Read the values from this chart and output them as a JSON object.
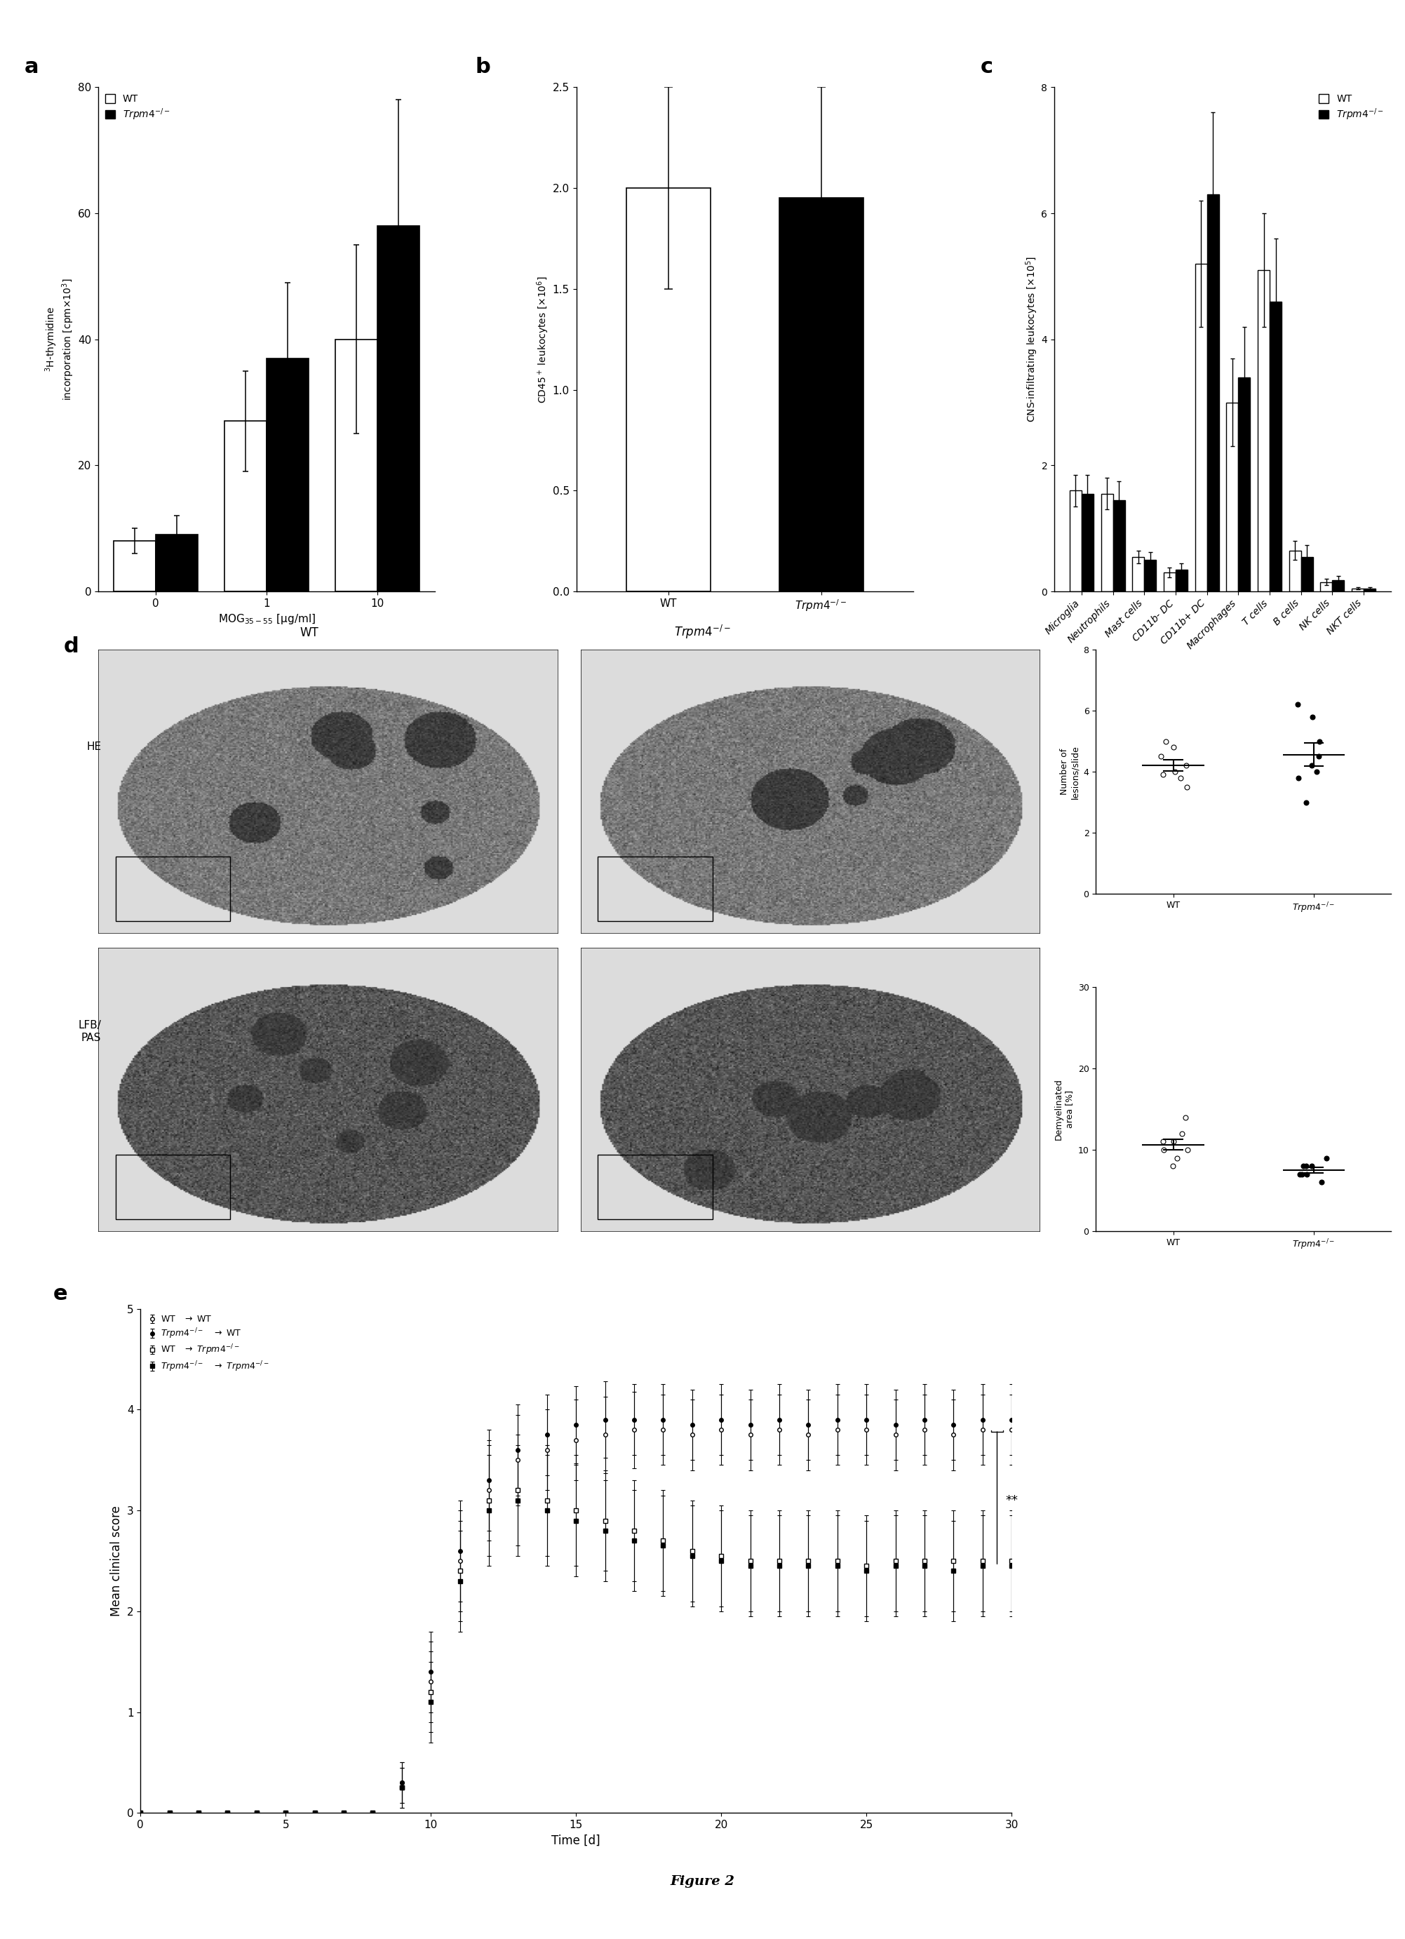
{
  "panel_a": {
    "wt_values": [
      8,
      27,
      40
    ],
    "wt_errors": [
      2,
      8,
      15
    ],
    "ko_values": [
      9,
      37,
      58
    ],
    "ko_errors": [
      3,
      12,
      20
    ],
    "x_labels": [
      "0",
      "1",
      "10"
    ],
    "xlabel": "MOG$_{35-55}$ [μg/ml]",
    "ylabel": "$^3$H-thymidine\nincorporation [cpm×10$^3$]",
    "ylim": [
      0,
      80
    ],
    "yticks": [
      0,
      20,
      40,
      60,
      80
    ]
  },
  "panel_b": {
    "wt_value": 2.0,
    "wt_error": 0.5,
    "ko_value": 1.95,
    "ko_error": 0.55,
    "ylabel": "CD45$^+$ leukocytes [×10$^6$]",
    "ylim": [
      0,
      2.5
    ],
    "yticks": [
      0,
      0.5,
      1.0,
      1.5,
      2.0,
      2.5
    ]
  },
  "panel_c": {
    "categories": [
      "Microglia",
      "Neutrophils",
      "Mast cells",
      "CD11b- DC",
      "CD11b+ DC",
      "Macrophages",
      "T cells",
      "B cells",
      "NK cells",
      "NKT cells"
    ],
    "wt_values": [
      1.6,
      1.55,
      0.55,
      0.3,
      5.2,
      3.0,
      5.1,
      0.65,
      0.15,
      0.05
    ],
    "wt_errors": [
      0.25,
      0.25,
      0.1,
      0.08,
      1.0,
      0.7,
      0.9,
      0.15,
      0.05,
      0.02
    ],
    "ko_values": [
      1.55,
      1.45,
      0.5,
      0.35,
      6.3,
      3.4,
      4.6,
      0.55,
      0.18,
      0.05
    ],
    "ko_errors": [
      0.3,
      0.3,
      0.12,
      0.1,
      1.3,
      0.8,
      1.0,
      0.18,
      0.06,
      0.02
    ],
    "ylabel": "CNS-infiltrating leukocytes [×10$^5$]",
    "ylim": [
      0,
      8
    ],
    "yticks": [
      0,
      2,
      4,
      6,
      8
    ]
  },
  "scatter_lesions": {
    "ylabel": "Number of\nlesions/slide",
    "ylim": [
      0,
      8
    ],
    "yticks": [
      0,
      2,
      4,
      6,
      8
    ],
    "wt_points": [
      4.0,
      3.8,
      5.0,
      4.8,
      4.2,
      3.5,
      4.5,
      3.9
    ],
    "ko_points": [
      3.8,
      4.2,
      6.2,
      5.8,
      4.5,
      3.0,
      5.0,
      4.0
    ]
  },
  "scatter_demyelin": {
    "ylabel": "Demyelinated\narea [%]",
    "ylim": [
      0,
      30
    ],
    "yticks": [
      0,
      10,
      20,
      30
    ],
    "wt_points": [
      10,
      14,
      11,
      10,
      8,
      9,
      12,
      11
    ],
    "ko_points": [
      7,
      8,
      7,
      6,
      8,
      7,
      9,
      8
    ]
  },
  "panel_e": {
    "days": [
      0,
      1,
      2,
      3,
      4,
      5,
      6,
      7,
      8,
      9,
      10,
      11,
      12,
      13,
      14,
      15,
      16,
      17,
      18,
      19,
      20,
      21,
      22,
      23,
      24,
      25,
      26,
      27,
      28,
      29,
      30
    ],
    "wt_wt_values": [
      0,
      0,
      0,
      0,
      0,
      0,
      0,
      0,
      0,
      0.3,
      1.3,
      2.5,
      3.2,
      3.5,
      3.6,
      3.7,
      3.75,
      3.8,
      3.8,
      3.75,
      3.8,
      3.75,
      3.8,
      3.75,
      3.8,
      3.8,
      3.75,
      3.8,
      3.75,
      3.8,
      3.8
    ],
    "wt_wt_errors": [
      0,
      0,
      0,
      0,
      0,
      0,
      0,
      0,
      0,
      0.2,
      0.4,
      0.5,
      0.5,
      0.45,
      0.4,
      0.4,
      0.38,
      0.38,
      0.35,
      0.35,
      0.35,
      0.35,
      0.35,
      0.35,
      0.35,
      0.35,
      0.35,
      0.35,
      0.35,
      0.35,
      0.35
    ],
    "ko_wt_values": [
      0,
      0,
      0,
      0,
      0,
      0,
      0,
      0,
      0,
      0.3,
      1.4,
      2.6,
      3.3,
      3.6,
      3.75,
      3.85,
      3.9,
      3.9,
      3.9,
      3.85,
      3.9,
      3.85,
      3.9,
      3.85,
      3.9,
      3.9,
      3.85,
      3.9,
      3.85,
      3.9,
      3.9
    ],
    "ko_wt_errors": [
      0,
      0,
      0,
      0,
      0,
      0,
      0,
      0,
      0,
      0.2,
      0.4,
      0.5,
      0.5,
      0.45,
      0.4,
      0.38,
      0.38,
      0.35,
      0.35,
      0.35,
      0.35,
      0.35,
      0.35,
      0.35,
      0.35,
      0.35,
      0.35,
      0.35,
      0.35,
      0.35,
      0.35
    ],
    "wt_ko_values": [
      0,
      0,
      0,
      0,
      0,
      0,
      0,
      0,
      0,
      0.25,
      1.2,
      2.4,
      3.1,
      3.2,
      3.1,
      3.0,
      2.9,
      2.8,
      2.7,
      2.6,
      2.55,
      2.5,
      2.5,
      2.5,
      2.5,
      2.45,
      2.5,
      2.5,
      2.5,
      2.5,
      2.5
    ],
    "wt_ko_errors": [
      0,
      0,
      0,
      0,
      0,
      0,
      0,
      0,
      0,
      0.2,
      0.4,
      0.5,
      0.55,
      0.55,
      0.55,
      0.55,
      0.5,
      0.5,
      0.5,
      0.5,
      0.5,
      0.5,
      0.5,
      0.5,
      0.5,
      0.5,
      0.5,
      0.5,
      0.5,
      0.5,
      0.5
    ],
    "ko_ko_values": [
      0,
      0,
      0,
      0,
      0,
      0,
      0,
      0,
      0,
      0.25,
      1.1,
      2.3,
      3.0,
      3.1,
      3.0,
      2.9,
      2.8,
      2.7,
      2.65,
      2.55,
      2.5,
      2.45,
      2.45,
      2.45,
      2.45,
      2.4,
      2.45,
      2.45,
      2.4,
      2.45,
      2.45
    ],
    "ko_ko_errors": [
      0,
      0,
      0,
      0,
      0,
      0,
      0,
      0,
      0,
      0.2,
      0.4,
      0.5,
      0.55,
      0.55,
      0.55,
      0.55,
      0.5,
      0.5,
      0.5,
      0.5,
      0.5,
      0.5,
      0.5,
      0.5,
      0.5,
      0.5,
      0.5,
      0.5,
      0.5,
      0.5,
      0.5
    ],
    "xlabel": "Time [d]",
    "ylabel": "Mean clinical score",
    "ylim": [
      0,
      5
    ],
    "yticks": [
      0,
      1,
      2,
      3,
      4,
      5
    ],
    "xlim": [
      0,
      30
    ],
    "xticks": [
      0,
      5,
      10,
      15,
      20,
      25,
      30
    ]
  }
}
